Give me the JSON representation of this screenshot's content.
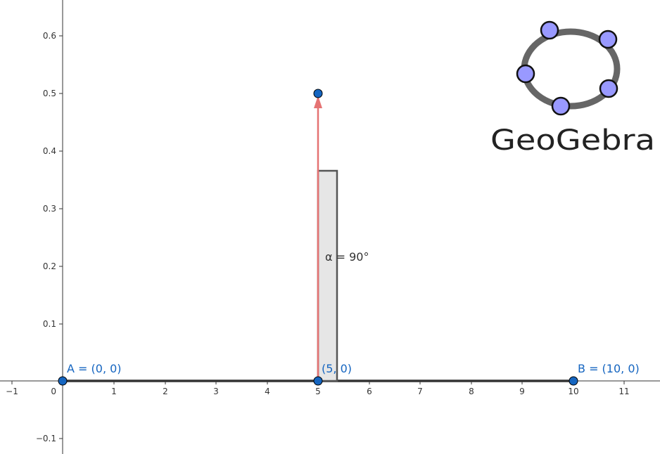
{
  "axes": {
    "x_ticks": [
      "−1",
      "0",
      "1",
      "2",
      "3",
      "4",
      "5",
      "6",
      "7",
      "8",
      "9",
      "10",
      "11"
    ],
    "y_ticks": [
      "0.6",
      "0.5",
      "0.4",
      "0.3",
      "0.2",
      "0.1",
      "−0.1"
    ]
  },
  "points": {
    "A": {
      "label": "A = (0, 0)",
      "x": 0,
      "y": 0
    },
    "B": {
      "label": "B = (10, 0)",
      "x": 10,
      "y": 0
    },
    "M": {
      "label": "(5, 0)",
      "x": 5,
      "y": 0
    },
    "P": {
      "x": 5,
      "y": 0.5
    }
  },
  "angle": {
    "label": "α = 90°",
    "value_deg": 90
  },
  "logo": {
    "text": "GeoGebra"
  },
  "colors": {
    "point_fill": "#1565c0",
    "point_label": "#1565c0",
    "vector": "#e57373",
    "segment": "#333333",
    "logo_ring": "#666666",
    "logo_node": "#9999ff"
  }
}
